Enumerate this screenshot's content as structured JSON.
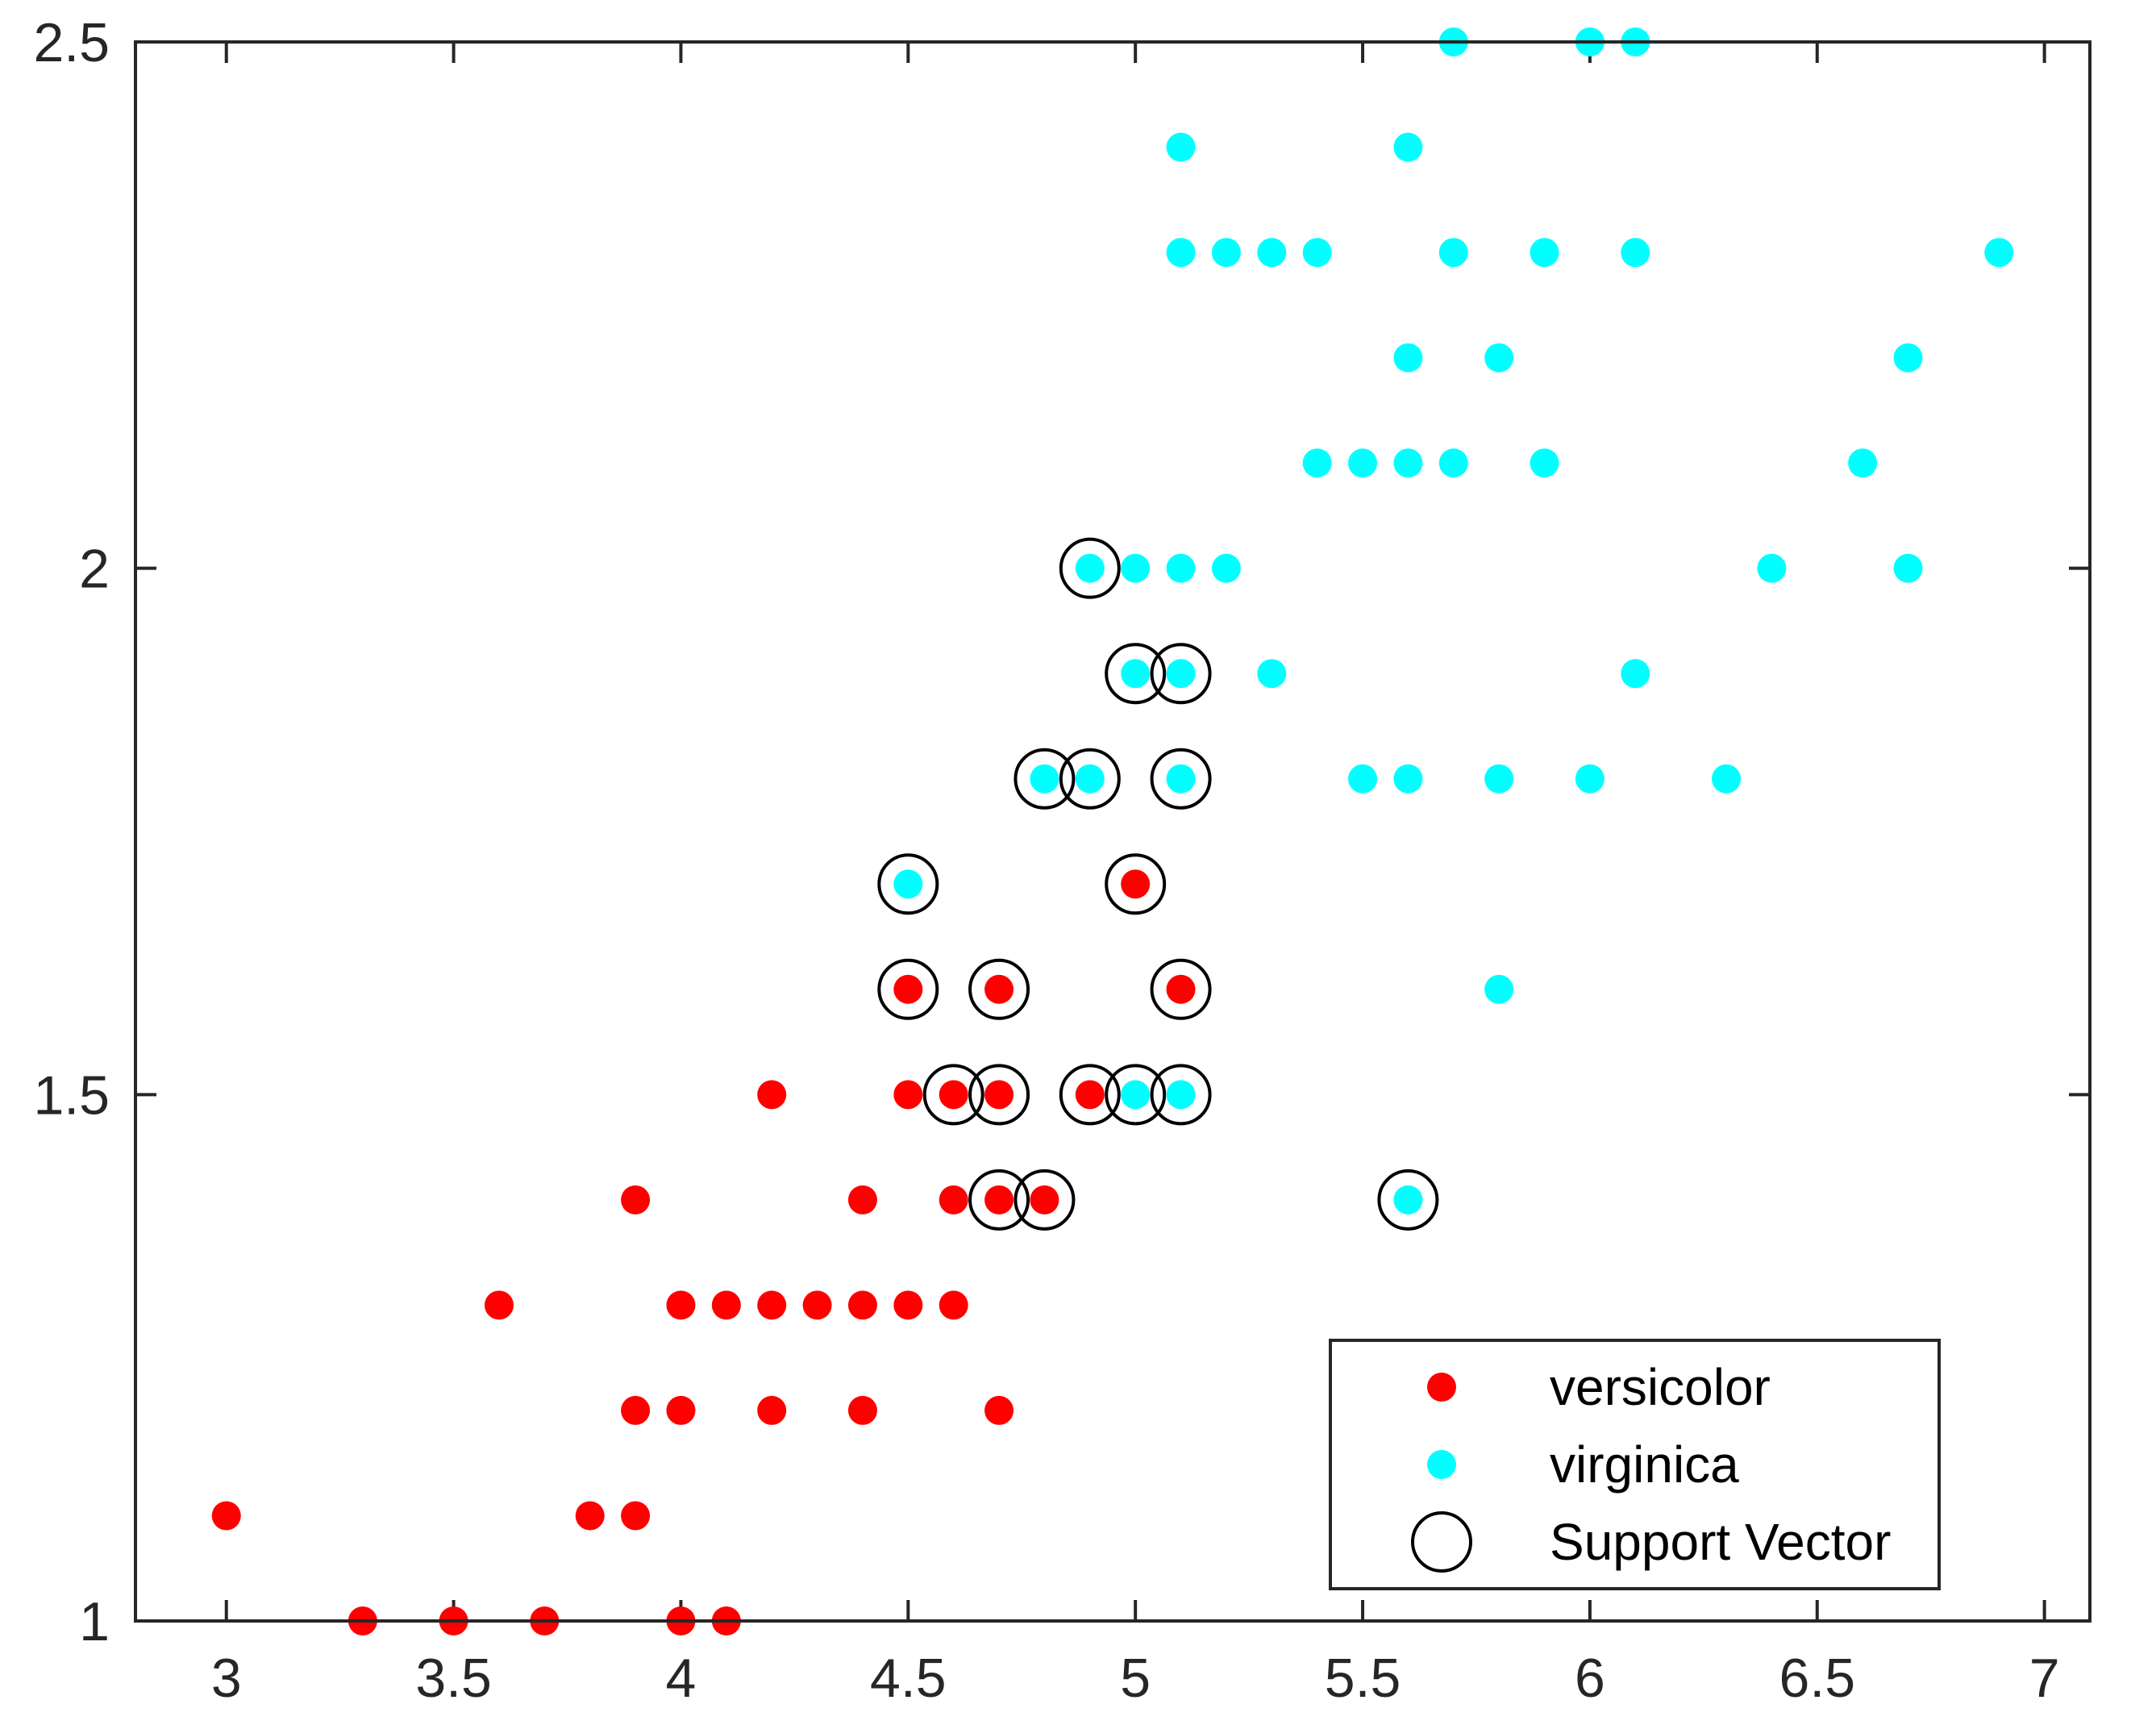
{
  "chart_data": {
    "type": "scatter",
    "title": "",
    "xlabel": "",
    "ylabel": "",
    "xlim": [
      2.8,
      7.1
    ],
    "ylim": [
      1.0,
      2.5
    ],
    "grid": false,
    "legend_position": "bottom-right",
    "x_ticks": [
      "3",
      "3.5",
      "4",
      "4.5",
      "5",
      "5.5",
      "6",
      "6.5",
      "7"
    ],
    "y_ticks": [
      "1",
      "1.5",
      "2",
      "2.5"
    ],
    "series": [
      {
        "name": "versicolor",
        "color": "#ff0000",
        "marker": "filled-circle",
        "points": [
          [
            3.0,
            1.1
          ],
          [
            3.3,
            1.0
          ],
          [
            3.5,
            1.0
          ],
          [
            3.7,
            1.0
          ],
          [
            4.0,
            1.0
          ],
          [
            4.1,
            1.0
          ],
          [
            3.8,
            1.1
          ],
          [
            3.9,
            1.1
          ],
          [
            3.9,
            1.2
          ],
          [
            4.0,
            1.2
          ],
          [
            4.2,
            1.2
          ],
          [
            4.4,
            1.2
          ],
          [
            4.7,
            1.2
          ],
          [
            3.6,
            1.3
          ],
          [
            4.0,
            1.3
          ],
          [
            4.1,
            1.3
          ],
          [
            4.2,
            1.3
          ],
          [
            4.3,
            1.3
          ],
          [
            4.4,
            1.3
          ],
          [
            4.5,
            1.3
          ],
          [
            4.6,
            1.3
          ],
          [
            3.9,
            1.4
          ],
          [
            4.4,
            1.4
          ],
          [
            4.6,
            1.4
          ],
          [
            4.7,
            1.4
          ],
          [
            4.8,
            1.4
          ],
          [
            4.2,
            1.5
          ],
          [
            4.5,
            1.5
          ],
          [
            4.6,
            1.5
          ],
          [
            4.7,
            1.5
          ],
          [
            4.9,
            1.5
          ],
          [
            4.5,
            1.6
          ],
          [
            4.7,
            1.6
          ],
          [
            5.1,
            1.6
          ],
          [
            5.0,
            1.7
          ]
        ]
      },
      {
        "name": "virginica",
        "color": "#00ffff",
        "marker": "filled-circle",
        "points": [
          [
            5.6,
            1.4
          ],
          [
            5.0,
            1.5
          ],
          [
            5.1,
            1.5
          ],
          [
            5.8,
            1.6
          ],
          [
            4.5,
            1.7
          ],
          [
            4.8,
            1.8
          ],
          [
            4.9,
            1.8
          ],
          [
            5.1,
            1.8
          ],
          [
            5.5,
            1.8
          ],
          [
            5.6,
            1.8
          ],
          [
            5.8,
            1.8
          ],
          [
            6.0,
            1.8
          ],
          [
            6.3,
            1.8
          ],
          [
            5.0,
            1.9
          ],
          [
            5.1,
            1.9
          ],
          [
            5.3,
            1.9
          ],
          [
            6.1,
            1.9
          ],
          [
            4.9,
            2.0
          ],
          [
            5.0,
            2.0
          ],
          [
            5.1,
            2.0
          ],
          [
            5.2,
            2.0
          ],
          [
            6.4,
            2.0
          ],
          [
            6.7,
            2.0
          ],
          [
            5.4,
            2.1
          ],
          [
            5.5,
            2.1
          ],
          [
            5.6,
            2.1
          ],
          [
            5.7,
            2.1
          ],
          [
            5.9,
            2.1
          ],
          [
            6.6,
            2.1
          ],
          [
            5.6,
            2.2
          ],
          [
            5.8,
            2.2
          ],
          [
            6.7,
            2.2
          ],
          [
            5.1,
            2.3
          ],
          [
            5.2,
            2.3
          ],
          [
            5.3,
            2.3
          ],
          [
            5.4,
            2.3
          ],
          [
            5.7,
            2.3
          ],
          [
            5.9,
            2.3
          ],
          [
            6.1,
            2.3
          ],
          [
            6.9,
            2.3
          ],
          [
            5.1,
            2.4
          ],
          [
            5.6,
            2.4
          ],
          [
            5.7,
            2.5
          ],
          [
            6.0,
            2.5
          ],
          [
            6.1,
            2.5
          ]
        ]
      },
      {
        "name": "Support Vector",
        "color": "#000000",
        "marker": "open-circle",
        "points": [
          [
            4.7,
            1.4
          ],
          [
            4.8,
            1.4
          ],
          [
            5.6,
            1.4
          ],
          [
            4.6,
            1.5
          ],
          [
            4.7,
            1.5
          ],
          [
            4.9,
            1.5
          ],
          [
            5.0,
            1.5
          ],
          [
            5.1,
            1.5
          ],
          [
            4.5,
            1.6
          ],
          [
            4.7,
            1.6
          ],
          [
            5.1,
            1.6
          ],
          [
            4.5,
            1.7
          ],
          [
            5.0,
            1.7
          ],
          [
            4.8,
            1.8
          ],
          [
            4.9,
            1.8
          ],
          [
            5.1,
            1.8
          ],
          [
            5.0,
            1.9
          ],
          [
            5.1,
            1.9
          ],
          [
            4.9,
            2.0
          ]
        ]
      }
    ],
    "legend": [
      "versicolor",
      "virginica",
      "Support Vector"
    ]
  }
}
